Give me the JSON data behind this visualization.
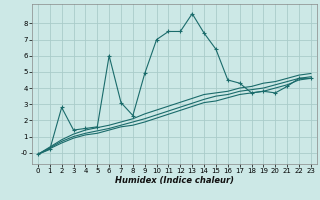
{
  "xlabel": "Humidex (Indice chaleur)",
  "bg_color": "#cce8e6",
  "grid_color": "#aaccca",
  "line_color": "#1a6b6b",
  "xlim": [
    -0.5,
    23.5
  ],
  "ylim": [
    -0.7,
    9.2
  ],
  "xticks": [
    0,
    1,
    2,
    3,
    4,
    5,
    6,
    7,
    8,
    9,
    10,
    11,
    12,
    13,
    14,
    15,
    16,
    17,
    18,
    19,
    20,
    21,
    22,
    23
  ],
  "yticks": [
    0,
    1,
    2,
    3,
    4,
    5,
    6,
    7,
    8
  ],
  "ytick_labels": [
    "-0",
    "1",
    "2",
    "3",
    "4",
    "5",
    "6",
    "7",
    "8"
  ],
  "main_x": [
    0,
    1,
    2,
    3,
    4,
    5,
    6,
    7,
    8,
    9,
    10,
    11,
    12,
    13,
    14,
    15,
    16,
    17,
    18,
    19,
    20,
    21,
    22,
    23
  ],
  "main_y": [
    -0.1,
    0.2,
    2.8,
    1.4,
    1.5,
    1.6,
    6.0,
    3.1,
    2.3,
    4.9,
    7.0,
    7.5,
    7.5,
    8.6,
    7.4,
    6.4,
    4.5,
    4.3,
    3.7,
    3.8,
    3.7,
    4.1,
    4.6,
    4.6
  ],
  "reg1_x": [
    0,
    2,
    3,
    4,
    5,
    6,
    7,
    8,
    9,
    14,
    15,
    16,
    17,
    18,
    19,
    20,
    21,
    22,
    23
  ],
  "reg1_y": [
    -0.1,
    0.6,
    0.9,
    1.1,
    1.2,
    1.4,
    1.6,
    1.7,
    1.9,
    3.1,
    3.2,
    3.4,
    3.6,
    3.7,
    3.8,
    4.0,
    4.2,
    4.5,
    4.6
  ],
  "reg2_x": [
    0,
    2,
    3,
    4,
    5,
    6,
    7,
    8,
    9,
    14,
    15,
    16,
    17,
    18,
    19,
    20,
    21,
    22,
    23
  ],
  "reg2_y": [
    -0.1,
    0.7,
    1.0,
    1.2,
    1.35,
    1.5,
    1.7,
    1.9,
    2.1,
    3.3,
    3.5,
    3.6,
    3.8,
    3.9,
    4.0,
    4.2,
    4.4,
    4.6,
    4.7
  ],
  "reg3_x": [
    0,
    2,
    3,
    4,
    5,
    6,
    7,
    8,
    9,
    14,
    15,
    16,
    17,
    18,
    19,
    20,
    21,
    22,
    23
  ],
  "reg3_y": [
    -0.1,
    0.8,
    1.15,
    1.4,
    1.55,
    1.7,
    1.9,
    2.1,
    2.4,
    3.6,
    3.7,
    3.8,
    4.0,
    4.1,
    4.3,
    4.4,
    4.6,
    4.8,
    4.9
  ]
}
